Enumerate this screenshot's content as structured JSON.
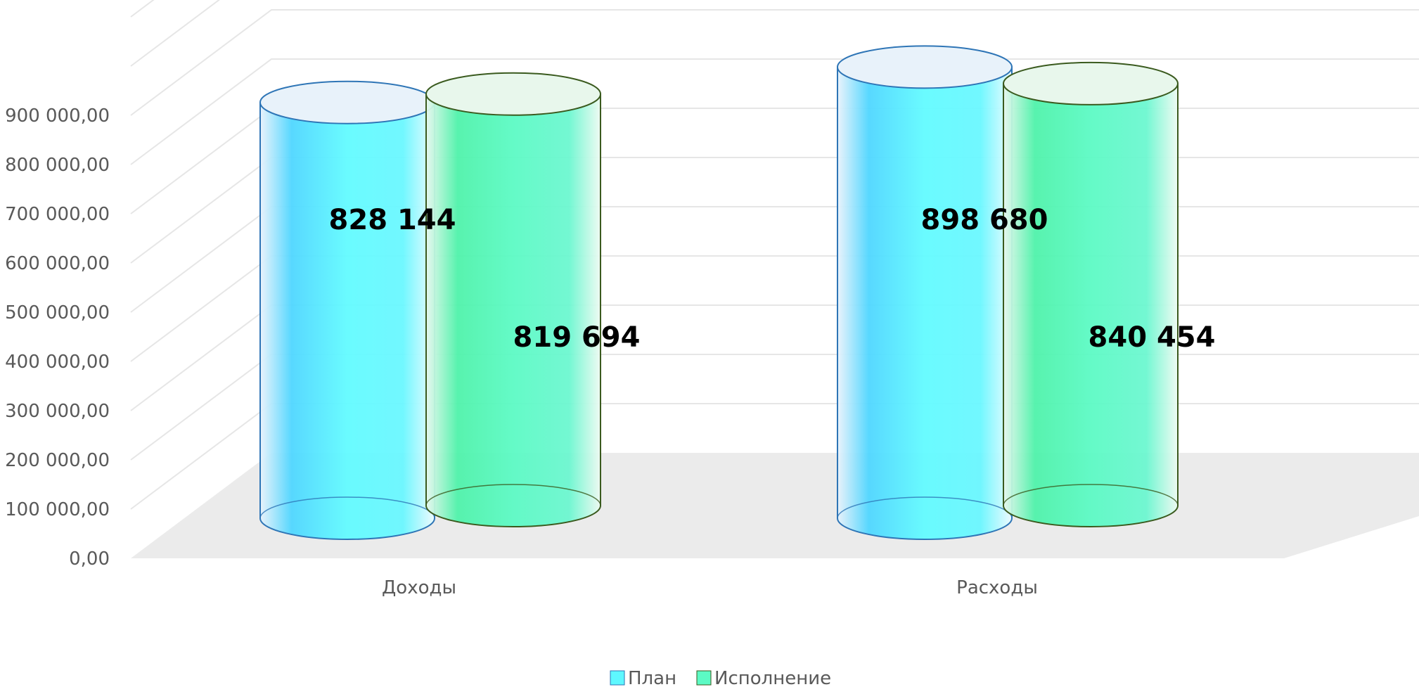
{
  "chart_data": {
    "type": "bar",
    "categories": [
      "Доходы",
      "Расходы"
    ],
    "series": [
      {
        "name": "План",
        "values": [
          828144,
          898680
        ],
        "labels": [
          "828 144",
          "898 680"
        ]
      },
      {
        "name": "Исполнение",
        "values": [
          819694,
          840454
        ],
        "labels": [
          "819 694",
          "840 454"
        ]
      }
    ],
    "y_ticks": [
      "0,00",
      "100 000,00",
      "200 000,00",
      "300 000,00",
      "400 000,00",
      "500 000,00",
      "600 000,00",
      "700 000,00",
      "800 000,00",
      "900 000,00"
    ],
    "ylim": [
      0,
      900000
    ],
    "grid": true,
    "legend_position": "bottom",
    "colors": {
      "plan": "#5ef8ff",
      "plan_edge": "#2e75b6",
      "exec": "#5cfac4",
      "exec_edge": "#3a5a1e",
      "floor": "#ebebeb",
      "grid": "#e6e6e6"
    }
  }
}
